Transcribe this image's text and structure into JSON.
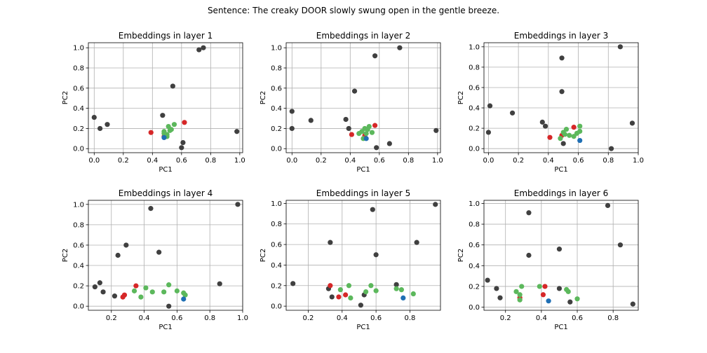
{
  "figure": {
    "suptitle": "Sentence: The creaky DOOR slowly swung open in the gentle breeze."
  },
  "colors": {
    "other": "#404040",
    "target": "#1f6fb4",
    "red": "#d62728",
    "green": "#5cb85c"
  },
  "chart_data": [
    {
      "type": "scatter",
      "title": "Embeddings in layer 1",
      "xlabel": "PC1",
      "ylabel": "PC2",
      "xlim": [
        -0.04,
        1.02
      ],
      "ylim": [
        -0.04,
        1.05
      ],
      "xticks": [
        0.0,
        0.2,
        0.4,
        0.6,
        0.8,
        1.0
      ],
      "yticks": [
        0.0,
        0.2,
        0.4,
        0.6,
        0.8,
        1.0
      ],
      "grid": true,
      "series": [
        {
          "group": "other",
          "points": [
            [
              0.0,
              0.31
            ],
            [
              0.04,
              0.2
            ],
            [
              0.09,
              0.24
            ],
            [
              0.47,
              0.33
            ],
            [
              0.54,
              0.62
            ],
            [
              0.6,
              0.01
            ],
            [
              0.61,
              0.06
            ],
            [
              0.72,
              0.98
            ],
            [
              0.75,
              1.0
            ],
            [
              0.98,
              0.17
            ]
          ]
        },
        {
          "group": "red",
          "points": [
            [
              0.39,
              0.16
            ],
            [
              0.48,
              0.12
            ],
            [
              0.62,
              0.26
            ]
          ]
        },
        {
          "group": "green",
          "points": [
            [
              0.48,
              0.17
            ],
            [
              0.5,
              0.14
            ],
            [
              0.51,
              0.22
            ],
            [
              0.52,
              0.18
            ],
            [
              0.53,
              0.19
            ],
            [
              0.55,
              0.24
            ],
            [
              0.5,
              0.12
            ],
            [
              0.48,
              0.15
            ]
          ]
        },
        {
          "group": "target",
          "points": [
            [
              0.48,
              0.11
            ]
          ]
        }
      ]
    },
    {
      "type": "scatter",
      "title": "Embeddings in layer 2",
      "xlabel": "PC1",
      "ylabel": "PC2",
      "xlim": [
        -0.04,
        1.02
      ],
      "ylim": [
        -0.04,
        1.05
      ],
      "xticks": [
        0.0,
        0.2,
        0.4,
        0.6,
        0.8,
        1.0
      ],
      "yticks": [
        0.0,
        0.2,
        0.4,
        0.6,
        0.8,
        1.0
      ],
      "grid": true,
      "series": [
        {
          "group": "other",
          "points": [
            [
              0.0,
              0.37
            ],
            [
              0.0,
              0.2
            ],
            [
              0.13,
              0.28
            ],
            [
              0.37,
              0.29
            ],
            [
              0.39,
              0.2
            ],
            [
              0.43,
              0.57
            ],
            [
              0.57,
              0.92
            ],
            [
              0.58,
              0.01
            ],
            [
              0.67,
              0.05
            ],
            [
              0.74,
              1.0
            ],
            [
              0.99,
              0.18
            ]
          ]
        },
        {
          "group": "red",
          "points": [
            [
              0.41,
              0.14
            ],
            [
              0.5,
              0.13
            ],
            [
              0.57,
              0.23
            ]
          ]
        },
        {
          "group": "green",
          "points": [
            [
              0.46,
              0.15
            ],
            [
              0.48,
              0.17
            ],
            [
              0.49,
              0.1
            ],
            [
              0.5,
              0.2
            ],
            [
              0.52,
              0.19
            ],
            [
              0.53,
              0.22
            ],
            [
              0.55,
              0.16
            ],
            [
              0.51,
              0.15
            ]
          ]
        },
        {
          "group": "target",
          "points": [
            [
              0.51,
              0.1
            ]
          ]
        }
      ]
    },
    {
      "type": "scatter",
      "title": "Embeddings in layer 3",
      "xlabel": "PC1",
      "ylabel": "PC2",
      "xlim": [
        -0.03,
        1.0
      ],
      "ylim": [
        -0.04,
        1.04
      ],
      "xticks": [
        0.0,
        0.2,
        0.4,
        0.6,
        0.8,
        1.0
      ],
      "yticks": [
        0.0,
        0.2,
        0.4,
        0.6,
        0.8,
        1.0
      ],
      "grid": true,
      "series": [
        {
          "group": "other",
          "points": [
            [
              0.0,
              0.16
            ],
            [
              0.01,
              0.42
            ],
            [
              0.16,
              0.35
            ],
            [
              0.36,
              0.26
            ],
            [
              0.38,
              0.22
            ],
            [
              0.49,
              0.89
            ],
            [
              0.49,
              0.56
            ],
            [
              0.5,
              0.05
            ],
            [
              0.82,
              0.0
            ],
            [
              0.88,
              1.0
            ],
            [
              0.96,
              0.25
            ]
          ]
        },
        {
          "group": "red",
          "points": [
            [
              0.41,
              0.11
            ],
            [
              0.49,
              0.13
            ],
            [
              0.57,
              0.21
            ]
          ]
        },
        {
          "group": "green",
          "points": [
            [
              0.48,
              0.1
            ],
            [
              0.5,
              0.16
            ],
            [
              0.52,
              0.19
            ],
            [
              0.54,
              0.13
            ],
            [
              0.57,
              0.12
            ],
            [
              0.59,
              0.15
            ],
            [
              0.61,
              0.17
            ],
            [
              0.61,
              0.22
            ],
            [
              0.51,
              0.14
            ]
          ]
        },
        {
          "group": "target",
          "points": [
            [
              0.61,
              0.08
            ]
          ]
        }
      ]
    },
    {
      "type": "scatter",
      "title": "Embeddings in layer 4",
      "xlabel": "PC1",
      "ylabel": "PC2",
      "xlim": [
        0.06,
        1.0
      ],
      "ylim": [
        -0.04,
        1.04
      ],
      "xticks": [
        0.2,
        0.4,
        0.6,
        0.8,
        1.0
      ],
      "yticks": [
        0.0,
        0.2,
        0.4,
        0.6,
        0.8,
        1.0
      ],
      "grid": true,
      "series": [
        {
          "group": "other",
          "points": [
            [
              0.1,
              0.19
            ],
            [
              0.13,
              0.23
            ],
            [
              0.15,
              0.14
            ],
            [
              0.22,
              0.1
            ],
            [
              0.24,
              0.5
            ],
            [
              0.29,
              0.6
            ],
            [
              0.44,
              0.96
            ],
            [
              0.49,
              0.53
            ],
            [
              0.55,
              0.0
            ],
            [
              0.86,
              0.22
            ],
            [
              0.97,
              1.0
            ]
          ]
        },
        {
          "group": "red",
          "points": [
            [
              0.27,
              0.09
            ],
            [
              0.28,
              0.11
            ],
            [
              0.35,
              0.2
            ]
          ]
        },
        {
          "group": "green",
          "points": [
            [
              0.34,
              0.15
            ],
            [
              0.38,
              0.09
            ],
            [
              0.41,
              0.18
            ],
            [
              0.45,
              0.14
            ],
            [
              0.52,
              0.14
            ],
            [
              0.55,
              0.21
            ],
            [
              0.6,
              0.15
            ],
            [
              0.64,
              0.13
            ],
            [
              0.65,
              0.11
            ]
          ]
        },
        {
          "group": "target",
          "points": [
            [
              0.64,
              0.07
            ]
          ]
        }
      ]
    },
    {
      "type": "scatter",
      "title": "Embeddings in layer 5",
      "xlabel": "PC1",
      "ylabel": "PC2",
      "xlim": [
        0.07,
        0.98
      ],
      "ylim": [
        -0.04,
        1.03
      ],
      "xticks": [
        0.2,
        0.4,
        0.6,
        0.8
      ],
      "yticks": [
        0.0,
        0.2,
        0.4,
        0.6,
        0.8,
        1.0
      ],
      "grid": true,
      "series": [
        {
          "group": "other",
          "points": [
            [
              0.11,
              0.22
            ],
            [
              0.32,
              0.17
            ],
            [
              0.33,
              0.62
            ],
            [
              0.34,
              0.09
            ],
            [
              0.51,
              0.01
            ],
            [
              0.53,
              0.11
            ],
            [
              0.58,
              0.94
            ],
            [
              0.6,
              0.5
            ],
            [
              0.72,
              0.21
            ],
            [
              0.84,
              0.62
            ],
            [
              0.95,
              0.99
            ]
          ]
        },
        {
          "group": "red",
          "points": [
            [
              0.33,
              0.2
            ],
            [
              0.38,
              0.09
            ],
            [
              0.42,
              0.11
            ]
          ]
        },
        {
          "group": "green",
          "points": [
            [
              0.39,
              0.16
            ],
            [
              0.44,
              0.2
            ],
            [
              0.45,
              0.08
            ],
            [
              0.54,
              0.14
            ],
            [
              0.57,
              0.2
            ],
            [
              0.6,
              0.15
            ],
            [
              0.72,
              0.17
            ],
            [
              0.75,
              0.16
            ],
            [
              0.82,
              0.12
            ]
          ]
        },
        {
          "group": "target",
          "points": [
            [
              0.76,
              0.08
            ]
          ]
        }
      ]
    },
    {
      "type": "scatter",
      "title": "Embeddings in layer 6",
      "xlabel": "PC1",
      "ylabel": "PC2",
      "xlim": [
        0.08,
        0.94
      ],
      "ylim": [
        -0.03,
        1.03
      ],
      "xticks": [
        0.2,
        0.4,
        0.6,
        0.8
      ],
      "yticks": [
        0.0,
        0.2,
        0.4,
        0.6,
        0.8,
        1.0
      ],
      "grid": true,
      "series": [
        {
          "group": "other",
          "points": [
            [
              0.1,
              0.26
            ],
            [
              0.15,
              0.18
            ],
            [
              0.17,
              0.09
            ],
            [
              0.33,
              0.91
            ],
            [
              0.33,
              0.5
            ],
            [
              0.5,
              0.56
            ],
            [
              0.5,
              0.18
            ],
            [
              0.56,
              0.05
            ],
            [
              0.77,
              0.98
            ],
            [
              0.84,
              0.6
            ],
            [
              0.91,
              0.03
            ]
          ]
        },
        {
          "group": "red",
          "points": [
            [
              0.28,
              0.09
            ],
            [
              0.41,
              0.12
            ],
            [
              0.42,
              0.2
            ]
          ]
        },
        {
          "group": "green",
          "points": [
            [
              0.26,
              0.15
            ],
            [
              0.28,
              0.07
            ],
            [
              0.28,
              0.12
            ],
            [
              0.29,
              0.2
            ],
            [
              0.39,
              0.2
            ],
            [
              0.54,
              0.17
            ],
            [
              0.55,
              0.15
            ],
            [
              0.6,
              0.08
            ]
          ]
        },
        {
          "group": "target",
          "points": [
            [
              0.44,
              0.06
            ]
          ]
        }
      ]
    }
  ]
}
